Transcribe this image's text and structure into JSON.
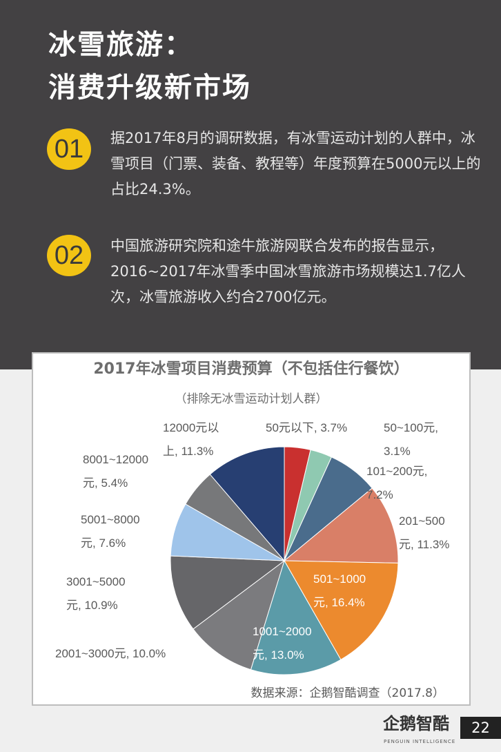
{
  "header": {
    "title_line1": "冰雪旅游：",
    "title_line2": "消费升级新市场"
  },
  "points": [
    {
      "badge": "01",
      "text": "据2017年8月的调研数据，有冰雪运动计划的人群中，冰雪项目（门票、装备、教程等）年度预算在5000元以上的占比24.3%。"
    },
    {
      "badge": "02",
      "text": "中国旅游研究院和途牛旅游网联合发布的报告显示，2016~2017年冰雪季中国冰雪旅游市场规模达1.7亿人次，冰雪旅游收入约合2700亿元。"
    }
  ],
  "colors": {
    "dark_bg": "#434143",
    "badge": "#f2c314"
  },
  "chart_data": {
    "type": "pie",
    "title": "2017年冰雪项目消费预算（不包括住行餐饮）",
    "subtitle": "（排除无冰雪运动计划人群）",
    "start": "12 o'clock, clockwise",
    "slices": [
      {
        "label": "50元以下, 3.7%",
        "category": "50元以下",
        "value": 3.7,
        "color": "#c9302f"
      },
      {
        "label": "50~100元,\n3.1%",
        "category": "50~100元",
        "value": 3.1,
        "color": "#8fc9b1"
      },
      {
        "label": "101~200元,\n7.2%",
        "category": "101~200元",
        "value": 7.2,
        "color": "#4a6c8c"
      },
      {
        "label": "201~500\n元, 11.3%",
        "category": "201~500元",
        "value": 11.3,
        "color": "#d97f67"
      },
      {
        "label": "501~1000\n元, 16.4%",
        "category": "501~1000元",
        "value": 16.4,
        "color": "#ec8a2e"
      },
      {
        "label": "1001~2000\n元, 13.0%",
        "category": "1001~2000元",
        "value": 13.0,
        "color": "#5b9ba8"
      },
      {
        "label": "2001~3000元, 10.0%",
        "category": "2001~3000元",
        "value": 10.0,
        "color": "#7b7b7e"
      },
      {
        "label": "3001~5000\n元, 10.9%",
        "category": "3001~5000元",
        "value": 10.9,
        "color": "#666669"
      },
      {
        "label": "5001~8000\n元, 7.6%",
        "category": "5001~8000元",
        "value": 7.6,
        "color": "#9fc4ea"
      },
      {
        "label": "8001~12000\n元, 5.4%",
        "category": "8001~12000元",
        "value": 5.4,
        "color": "#77787a"
      },
      {
        "label": "12000元以\n上, 11.3%",
        "category": "12000元以上",
        "value": 11.3,
        "color": "#273f72"
      }
    ],
    "source": "数据来源：企鹅智酷调查（2017.8）"
  },
  "footer": {
    "logo": "企鹅智酷",
    "logo_sub": "PENGUIN INTELLIGENCE",
    "page": "22"
  }
}
